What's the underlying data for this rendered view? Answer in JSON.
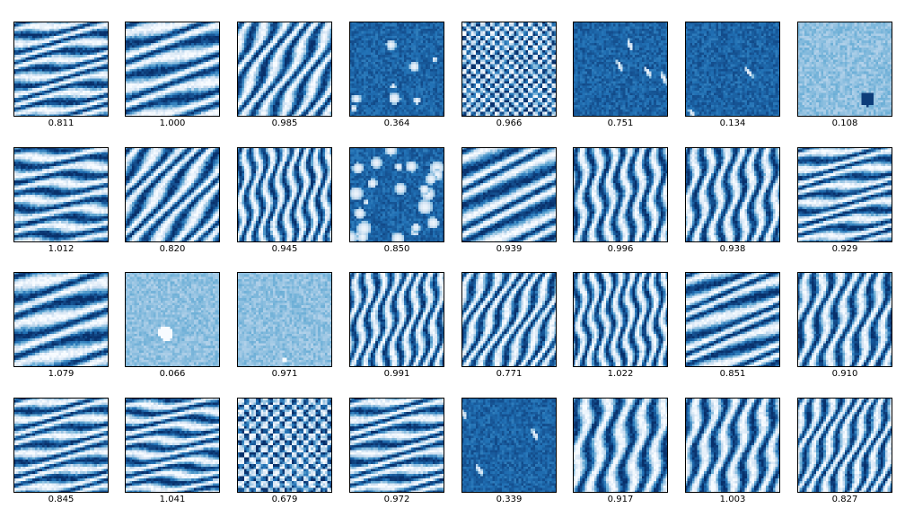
{
  "chart_data": {
    "type": "heatmap",
    "title": "",
    "colormap": "Blues",
    "colors": {
      "light": "#f7fbff",
      "mid": "#6baed6",
      "dark": "#08306b"
    },
    "rows": 4,
    "cols": 8,
    "panels": [
      {
        "score": "0.811",
        "pattern": "stripes",
        "angle": 80,
        "period": 5
      },
      {
        "score": "1.000",
        "pattern": "stripes",
        "angle": 75,
        "period": 7
      },
      {
        "score": "0.985",
        "pattern": "stripes",
        "angle": 30,
        "period": 6
      },
      {
        "score": "0.364",
        "pattern": "blobs-dark",
        "density": 0.04
      },
      {
        "score": "0.966",
        "pattern": "checker",
        "period": 4
      },
      {
        "score": "0.751",
        "pattern": "streaks-dark",
        "density": 0.02
      },
      {
        "score": "0.134",
        "pattern": "streaks-dark",
        "density": 0.01
      },
      {
        "score": "0.108",
        "pattern": "flat-light",
        "density": 0.004
      },
      {
        "score": "1.012",
        "pattern": "stripes",
        "angle": 85,
        "period": 6
      },
      {
        "score": "0.820",
        "pattern": "stripes",
        "angle": 40,
        "period": 6
      },
      {
        "score": "0.945",
        "pattern": "stripes",
        "angle": 5,
        "period": 5
      },
      {
        "score": "0.850",
        "pattern": "blobs-dark",
        "density": 0.12
      },
      {
        "score": "0.939",
        "pattern": "stripes",
        "angle": 65,
        "period": 7
      },
      {
        "score": "0.996",
        "pattern": "stripes",
        "angle": 3,
        "period": 6
      },
      {
        "score": "0.938",
        "pattern": "stripes",
        "angle": 8,
        "period": 6
      },
      {
        "score": "0.929",
        "pattern": "stripes",
        "angle": 80,
        "period": 5
      },
      {
        "score": "1.079",
        "pattern": "stripes",
        "angle": 75,
        "period": 8
      },
      {
        "score": "0.066",
        "pattern": "flat-light",
        "density": 0.001
      },
      {
        "score": "0.971",
        "pattern": "flat-light",
        "density": 0.001
      },
      {
        "score": "0.991",
        "pattern": "stripes",
        "angle": 10,
        "period": 5
      },
      {
        "score": "0.771",
        "pattern": "stripes",
        "angle": 25,
        "period": 5
      },
      {
        "score": "1.022",
        "pattern": "stripes",
        "angle": 2,
        "period": 5
      },
      {
        "score": "0.851",
        "pattern": "stripes",
        "angle": 70,
        "period": 6
      },
      {
        "score": "0.910",
        "pattern": "stripes",
        "angle": 15,
        "period": 6
      },
      {
        "score": "0.845",
        "pattern": "stripes",
        "angle": 80,
        "period": 5
      },
      {
        "score": "1.041",
        "pattern": "stripes",
        "angle": 85,
        "period": 5
      },
      {
        "score": "0.679",
        "pattern": "checker",
        "period": 5
      },
      {
        "score": "0.972",
        "pattern": "stripes",
        "angle": 80,
        "period": 5
      },
      {
        "score": "0.339",
        "pattern": "streaks-dark",
        "density": 0.015
      },
      {
        "score": "0.917",
        "pattern": "stripes",
        "angle": 10,
        "period": 8
      },
      {
        "score": "1.003",
        "pattern": "stripes",
        "angle": 12,
        "period": 7
      },
      {
        "score": "0.827",
        "pattern": "stripes",
        "angle": 20,
        "period": 5
      }
    ]
  }
}
